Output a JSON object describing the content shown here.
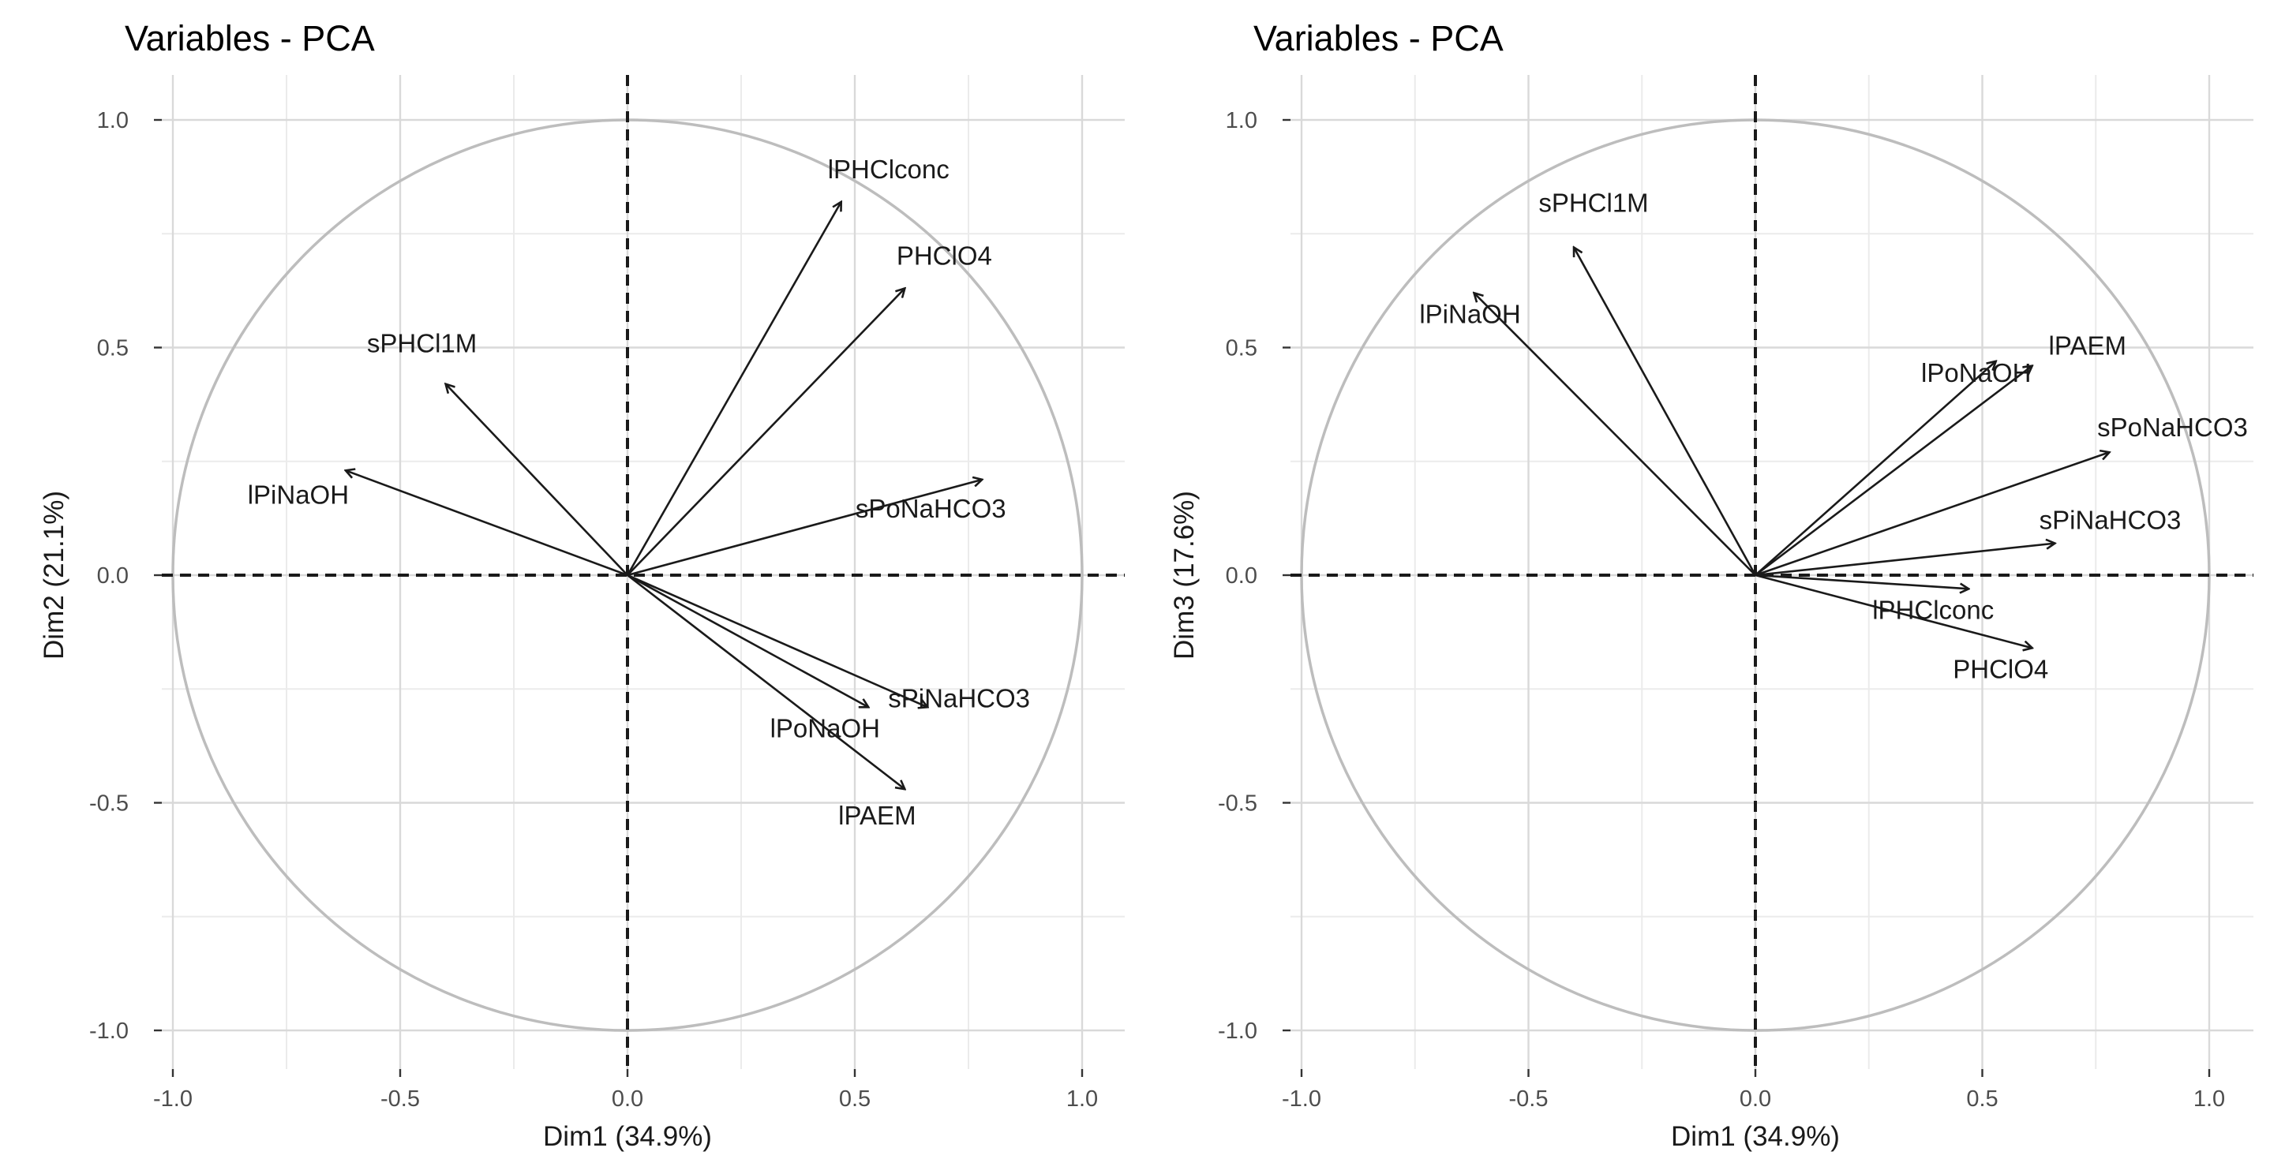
{
  "chart_data": [
    {
      "type": "scatter",
      "subtype": "pca-variable-correlation-circle",
      "title": "Variables - PCA",
      "xlabel": "Dim1 (34.9%)",
      "ylabel": "Dim2 (21.1%)",
      "xlim": [
        -1.1,
        1.1
      ],
      "ylim": [
        -1.08,
        1.08
      ],
      "x_ticks": [
        -1.0,
        -0.5,
        0.0,
        0.5,
        1.0
      ],
      "y_ticks": [
        -1.0,
        -0.5,
        0.0,
        0.5,
        1.0
      ],
      "x_tick_labels": [
        "-1.0",
        "-0.5",
        "0.0",
        "0.5",
        "1.0"
      ],
      "y_tick_labels": [
        "-1.0",
        "-0.5",
        "0.0",
        "0.5",
        "1.0"
      ],
      "grid": true,
      "variables": [
        {
          "name": "lPHClconc",
          "x": 0.47,
          "y": 0.82
        },
        {
          "name": "PHClO4",
          "x": 0.61,
          "y": 0.63
        },
        {
          "name": "sPHCl1M",
          "x": -0.4,
          "y": 0.42
        },
        {
          "name": "lPiNaOH",
          "x": -0.62,
          "y": 0.23
        },
        {
          "name": "sPoNaHCO3",
          "x": 0.78,
          "y": 0.21
        },
        {
          "name": "sPiNaHCO3",
          "x": 0.66,
          "y": -0.29
        },
        {
          "name": "lPoNaOH",
          "x": 0.53,
          "y": -0.29
        },
        {
          "name": "lPAEM",
          "x": 0.61,
          "y": -0.47
        }
      ]
    },
    {
      "type": "scatter",
      "subtype": "pca-variable-correlation-circle",
      "title": "Variables - PCA",
      "xlabel": "Dim1 (34.9%)",
      "ylabel": "Dim3 (17.6%)",
      "xlim": [
        -1.1,
        1.1
      ],
      "ylim": [
        -1.08,
        1.08
      ],
      "x_ticks": [
        -1.0,
        -0.5,
        0.0,
        0.5,
        1.0
      ],
      "y_ticks": [
        -1.0,
        -0.5,
        0.0,
        0.5,
        1.0
      ],
      "x_tick_labels": [
        "-1.0",
        "-0.5",
        "0.0",
        "0.5",
        "1.0"
      ],
      "y_tick_labels": [
        "-1.0",
        "-0.5",
        "0.0",
        "0.5",
        "1.0"
      ],
      "grid": true,
      "variables": [
        {
          "name": "sPHCl1M",
          "x": -0.4,
          "y": 0.72
        },
        {
          "name": "lPiNaOH",
          "x": -0.62,
          "y": 0.62
        },
        {
          "name": "lPoNaOH",
          "x": 0.53,
          "y": 0.47
        },
        {
          "name": "lPAEM",
          "x": 0.61,
          "y": 0.46
        },
        {
          "name": "sPoNaHCO3",
          "x": 0.78,
          "y": 0.27
        },
        {
          "name": "sPiNaHCO3",
          "x": 0.66,
          "y": 0.07
        },
        {
          "name": "lPHClconc",
          "x": 0.47,
          "y": -0.03
        },
        {
          "name": "PHClO4",
          "x": 0.61,
          "y": -0.16
        }
      ]
    }
  ]
}
